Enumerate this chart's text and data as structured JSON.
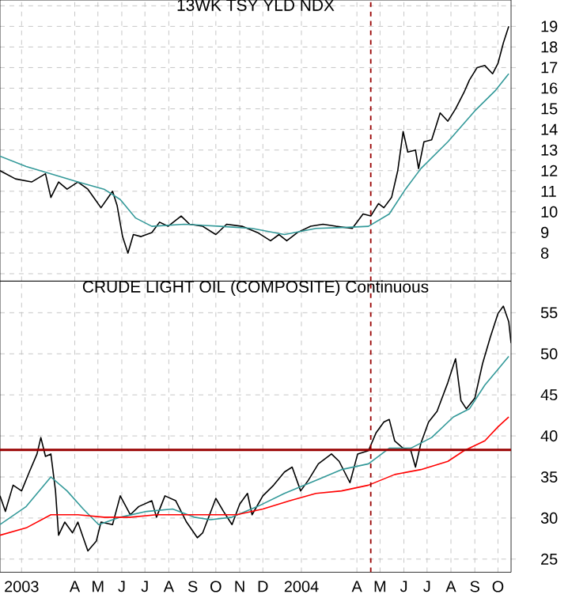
{
  "chart_data": [
    {
      "type": "line",
      "title": "13WK TSY YLD NDX",
      "grid": true,
      "tick_labels": "y",
      "xlim": [
        "2003-01-08",
        "2004-11-01"
      ],
      "ylim": [
        6.64,
        20.28
      ],
      "xticks": [
        {
          "value": "2003-02-05",
          "label": null
        },
        {
          "value": "2003-04-15",
          "label": null
        },
        {
          "value": "2003-05-15",
          "label": null
        },
        {
          "value": "2003-06-15",
          "label": null
        },
        {
          "value": "2003-07-15",
          "label": null
        },
        {
          "value": "2003-08-15",
          "label": null
        },
        {
          "value": "2003-09-15",
          "label": null
        },
        {
          "value": "2003-10-15",
          "label": null
        },
        {
          "value": "2003-11-15",
          "label": null
        },
        {
          "value": "2003-12-15",
          "label": null
        },
        {
          "value": "2004-02-03",
          "label": null
        },
        {
          "value": "2004-04-15",
          "label": null
        },
        {
          "value": "2004-05-15",
          "label": null
        },
        {
          "value": "2004-06-15",
          "label": null
        },
        {
          "value": "2004-07-15",
          "label": null
        },
        {
          "value": "2004-08-15",
          "label": null
        },
        {
          "value": "2004-09-15",
          "label": null
        },
        {
          "value": "2004-10-15",
          "label": null
        }
      ],
      "yticks": [
        {
          "value": 7,
          "label": null
        },
        8,
        9,
        10,
        11,
        12,
        13,
        14,
        15,
        16,
        17,
        18,
        19,
        {
          "value": 20,
          "label": null
        }
      ],
      "ref_lines": [
        {
          "axis": "x",
          "value": "2004-05-03",
          "color": "#990000",
          "line_style": "dashed"
        }
      ],
      "series": [
        {
          "color": "#000000",
          "x": [
            "2003-01-08",
            "2003-01-28",
            "2003-02-18",
            "2003-03-08",
            "2003-03-15",
            "2003-03-25",
            "2003-04-05",
            "2003-04-19",
            "2003-05-02",
            "2003-05-19",
            "2003-06-03",
            "2003-06-09",
            "2003-06-16",
            "2003-06-23",
            "2003-06-30",
            "2003-07-10",
            "2003-07-24",
            "2003-08-03",
            "2003-08-14",
            "2003-08-31",
            "2003-09-11",
            "2003-09-28",
            "2003-10-15",
            "2003-10-29",
            "2003-11-18",
            "2003-12-08",
            "2003-12-25",
            "2004-01-05",
            "2004-01-15",
            "2004-01-29",
            "2004-02-15",
            "2004-03-02",
            "2004-03-19",
            "2004-04-09",
            "2004-04-23",
            "2004-05-03",
            "2004-05-13",
            "2004-05-20",
            "2004-05-30",
            "2004-06-07",
            "2004-06-14",
            "2004-06-20",
            "2004-06-30",
            "2004-07-04",
            "2004-07-11",
            "2004-07-21",
            "2004-08-01",
            "2004-08-11",
            "2004-08-21",
            "2004-09-01",
            "2004-09-08",
            "2004-09-18",
            "2004-09-28",
            "2004-10-08",
            "2004-10-15",
            "2004-10-22",
            "2004-10-29"
          ],
          "values": [
            12.0,
            11.6,
            11.45,
            11.85,
            10.7,
            11.45,
            11.1,
            11.45,
            11.1,
            10.2,
            11.0,
            10.3,
            8.8,
            8.0,
            8.9,
            8.8,
            9.0,
            9.5,
            9.3,
            9.8,
            9.4,
            9.3,
            8.9,
            9.4,
            9.3,
            9.0,
            8.6,
            8.9,
            8.6,
            9.0,
            9.3,
            9.4,
            9.3,
            9.2,
            9.9,
            9.8,
            10.4,
            10.2,
            10.7,
            12.0,
            13.9,
            12.9,
            13.0,
            12.1,
            13.4,
            13.5,
            14.8,
            14.4,
            15.0,
            15.8,
            16.4,
            17.0,
            17.1,
            16.7,
            17.2,
            18.2,
            19.0
          ]
        },
        {
          "color": "#339999",
          "x": [
            "2003-01-08",
            "2003-02-11",
            "2003-03-15",
            "2003-04-19",
            "2003-05-23",
            "2003-06-13",
            "2003-07-03",
            "2003-07-24",
            "2003-09-04",
            "2003-10-21",
            "2003-12-01",
            "2004-01-12",
            "2004-02-22",
            "2004-04-03",
            "2004-04-30",
            "2004-05-27",
            "2004-06-17",
            "2004-07-07",
            "2004-08-11",
            "2004-09-15",
            "2004-10-12",
            "2004-10-29"
          ],
          "values": [
            12.7,
            12.2,
            11.85,
            11.45,
            11.1,
            10.6,
            9.7,
            9.3,
            9.4,
            9.3,
            9.2,
            8.9,
            9.2,
            9.25,
            9.3,
            9.9,
            11.1,
            12.1,
            13.4,
            14.9,
            15.9,
            16.7
          ]
        }
      ]
    },
    {
      "type": "line",
      "title": "CRUDE LIGHT OIL (COMPOSITE) Continuous",
      "grid": true,
      "xlim": [
        "2003-01-08",
        "2004-11-01"
      ],
      "ylim": [
        23.4,
        58.85
      ],
      "xticks": [
        {
          "value": "2003-02-05",
          "label": "2003"
        },
        {
          "value": "2003-04-15",
          "label": "A"
        },
        {
          "value": "2003-05-15",
          "label": "M"
        },
        {
          "value": "2003-06-15",
          "label": "J"
        },
        {
          "value": "2003-07-15",
          "label": "J"
        },
        {
          "value": "2003-08-15",
          "label": "A"
        },
        {
          "value": "2003-09-15",
          "label": "S"
        },
        {
          "value": "2003-10-15",
          "label": "O"
        },
        {
          "value": "2003-11-15",
          "label": "N"
        },
        {
          "value": "2003-12-15",
          "label": "D"
        },
        {
          "value": "2004-02-03",
          "label": "2004"
        },
        {
          "value": "2004-04-15",
          "label": "A"
        },
        {
          "value": "2004-05-15",
          "label": "M"
        },
        {
          "value": "2004-06-15",
          "label": "J"
        },
        {
          "value": "2004-07-15",
          "label": "J"
        },
        {
          "value": "2004-08-15",
          "label": "A"
        },
        {
          "value": "2004-09-15",
          "label": "S"
        },
        {
          "value": "2004-10-15",
          "label": "O"
        }
      ],
      "yticks": [
        25,
        30,
        35,
        40,
        45,
        50,
        55
      ],
      "ref_lines": [
        {
          "axis": "x",
          "value": "2004-05-03",
          "color": "#990000",
          "line_style": "dashed"
        },
        {
          "axis": "y",
          "value": 38.3,
          "color": "#990000",
          "line_style": "solid"
        }
      ],
      "series": [
        {
          "color": "#000000",
          "x": [
            "2003-01-08",
            "2003-01-15",
            "2003-01-25",
            "2003-02-05",
            "2003-02-15",
            "2003-02-25",
            "2003-03-02",
            "2003-03-08",
            "2003-03-15",
            "2003-03-21",
            "2003-03-25",
            "2003-04-02",
            "2003-04-12",
            "2003-04-19",
            "2003-04-26",
            "2003-05-02",
            "2003-05-13",
            "2003-05-19",
            "2003-06-03",
            "2003-06-13",
            "2003-06-26",
            "2003-07-07",
            "2003-07-24",
            "2003-07-30",
            "2003-08-10",
            "2003-08-24",
            "2003-09-07",
            "2003-09-21",
            "2003-09-28",
            "2003-10-15",
            "2003-10-25",
            "2003-11-05",
            "2003-11-15",
            "2003-11-25",
            "2003-12-01",
            "2003-12-15",
            "2003-12-29",
            "2004-01-12",
            "2004-01-22",
            "2004-02-02",
            "2004-02-12",
            "2004-02-25",
            "2004-03-13",
            "2004-03-23",
            "2004-04-06",
            "2004-04-16",
            "2004-04-30",
            "2004-05-10",
            "2004-05-20",
            "2004-05-27",
            "2004-06-03",
            "2004-06-14",
            "2004-06-24",
            "2004-06-30",
            "2004-07-07",
            "2004-07-17",
            "2004-07-28",
            "2004-08-11",
            "2004-08-21",
            "2004-08-28",
            "2004-09-04",
            "2004-09-15",
            "2004-09-25",
            "2004-10-05",
            "2004-10-15",
            "2004-10-22",
            "2004-10-29",
            "2004-11-01"
          ],
          "values": [
            32.7,
            30.8,
            34.0,
            33.3,
            35.6,
            37.8,
            39.8,
            37.5,
            37.8,
            33.3,
            27.9,
            29.5,
            28.2,
            29.5,
            27.6,
            26.0,
            27.2,
            29.5,
            29.2,
            32.7,
            30.4,
            31.4,
            32.1,
            30.1,
            32.7,
            32.1,
            29.5,
            27.6,
            28.2,
            32.4,
            30.8,
            29.2,
            31.7,
            33.0,
            30.4,
            32.7,
            34.0,
            35.6,
            36.2,
            33.3,
            34.6,
            36.6,
            37.8,
            36.9,
            34.3,
            37.8,
            38.2,
            40.4,
            41.7,
            42.0,
            39.4,
            38.5,
            38.2,
            36.2,
            39.1,
            41.7,
            43.0,
            46.5,
            49.4,
            44.3,
            43.3,
            44.6,
            48.8,
            52.0,
            54.9,
            55.8,
            53.9,
            51.3
          ]
        },
        {
          "color": "#339999",
          "x": [
            "2003-01-08",
            "2003-02-11",
            "2003-03-15",
            "2003-04-05",
            "2003-04-26",
            "2003-05-16",
            "2003-06-13",
            "2003-07-17",
            "2003-08-20",
            "2003-09-17",
            "2003-10-08",
            "2003-11-05",
            "2003-12-08",
            "2004-01-12",
            "2004-02-22",
            "2004-03-26",
            "2004-04-30",
            "2004-05-27",
            "2004-06-24",
            "2004-07-21",
            "2004-08-18",
            "2004-09-08",
            "2004-09-28",
            "2004-10-15",
            "2004-10-29"
          ],
          "values": [
            29.2,
            31.4,
            35.0,
            33.3,
            31.1,
            29.2,
            30.1,
            30.8,
            31.1,
            30.1,
            29.8,
            30.1,
            31.4,
            33.0,
            34.6,
            35.9,
            36.6,
            38.5,
            38.5,
            39.8,
            42.3,
            43.3,
            46.2,
            48.1,
            49.7
          ]
        },
        {
          "color": "#ff0000",
          "x": [
            "2003-01-08",
            "2003-02-11",
            "2003-03-15",
            "2003-04-19",
            "2003-05-23",
            "2003-06-26",
            "2003-07-30",
            "2003-09-04",
            "2003-10-08",
            "2003-11-11",
            "2003-12-15",
            "2004-01-19",
            "2004-02-22",
            "2004-03-26",
            "2004-04-30",
            "2004-06-03",
            "2004-07-07",
            "2004-08-11",
            "2004-09-01",
            "2004-09-28",
            "2004-10-15",
            "2004-10-29"
          ],
          "values": [
            27.9,
            28.8,
            30.4,
            30.4,
            30.1,
            30.1,
            30.4,
            30.4,
            30.4,
            30.4,
            31.1,
            32.1,
            33.0,
            33.3,
            34.0,
            35.3,
            35.9,
            36.9,
            38.2,
            39.4,
            41.1,
            42.3
          ]
        }
      ]
    }
  ]
}
